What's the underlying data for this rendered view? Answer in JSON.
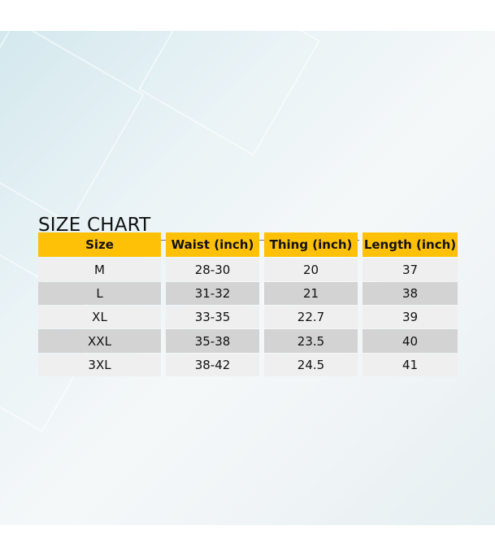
{
  "title": "SIZE CHART",
  "colors": {
    "header_bg": "#ffc107",
    "row_light": "#efefef",
    "row_dark": "#d3d3d3"
  },
  "columns": [
    "Size",
    "Waist (inch)",
    "Thing (inch)",
    "Length (inch)"
  ],
  "rows": [
    [
      "M",
      "28-30",
      "20",
      "37"
    ],
    [
      "L",
      "31-32",
      "21",
      "38"
    ],
    [
      "XL",
      "33-35",
      "22.7",
      "39"
    ],
    [
      "XXL",
      "35-38",
      "23.5",
      "40"
    ],
    [
      "3XL",
      "38-42",
      "24.5",
      "41"
    ]
  ]
}
